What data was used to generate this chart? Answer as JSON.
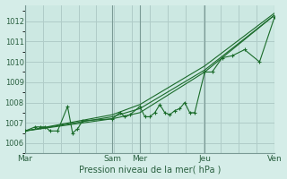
{
  "bg_color": "#d5ede8",
  "plot_bg_color": "#cce8e2",
  "grid_color": "#b0ccc8",
  "vline_color": "#7a9a95",
  "line_color": "#1a6b2a",
  "marker_color": "#1a6b2a",
  "tick_color": "#2a6040",
  "xlabel": "Pression niveau de la mer( hPa )",
  "ylim": [
    1005.5,
    1012.8
  ],
  "yticks": [
    1006,
    1007,
    1008,
    1009,
    1010,
    1011,
    1012
  ],
  "day_labels": [
    "Mar",
    "Sam",
    "Mer",
    "Jeu",
    "Ven"
  ],
  "day_positions": [
    0.0,
    0.35,
    0.46,
    0.72,
    1.0
  ],
  "series1_x": [
    0.0,
    0.04,
    0.06,
    0.08,
    0.1,
    0.13,
    0.17,
    0.19,
    0.21,
    0.23,
    0.35,
    0.38,
    0.4,
    0.42,
    0.46,
    0.48,
    0.5,
    0.52,
    0.54,
    0.56,
    0.58,
    0.6,
    0.62,
    0.64,
    0.66,
    0.68,
    0.72,
    0.75,
    0.79,
    0.83,
    0.88,
    0.94,
    1.0
  ],
  "series1_y": [
    1006.6,
    1006.8,
    1006.8,
    1006.8,
    1006.6,
    1006.6,
    1007.8,
    1006.5,
    1006.7,
    1007.1,
    1007.2,
    1007.5,
    1007.3,
    1007.4,
    1007.8,
    1007.3,
    1007.3,
    1007.5,
    1007.9,
    1007.5,
    1007.4,
    1007.6,
    1007.7,
    1008.0,
    1007.5,
    1007.5,
    1009.5,
    1009.5,
    1010.2,
    1010.3,
    1010.6,
    1010.0,
    1012.2
  ],
  "series2_x": [
    0.0,
    0.35,
    0.46,
    0.72,
    1.0
  ],
  "series2_y": [
    1006.6,
    1007.2,
    1007.5,
    1009.5,
    1012.3
  ],
  "series3_x": [
    0.0,
    0.35,
    0.46,
    0.72,
    1.0
  ],
  "series3_y": [
    1006.6,
    1007.3,
    1007.7,
    1009.6,
    1012.3
  ],
  "series4_x": [
    0.0,
    0.35,
    0.46,
    0.72,
    1.0
  ],
  "series4_y": [
    1006.6,
    1007.4,
    1007.9,
    1009.8,
    1012.4
  ]
}
